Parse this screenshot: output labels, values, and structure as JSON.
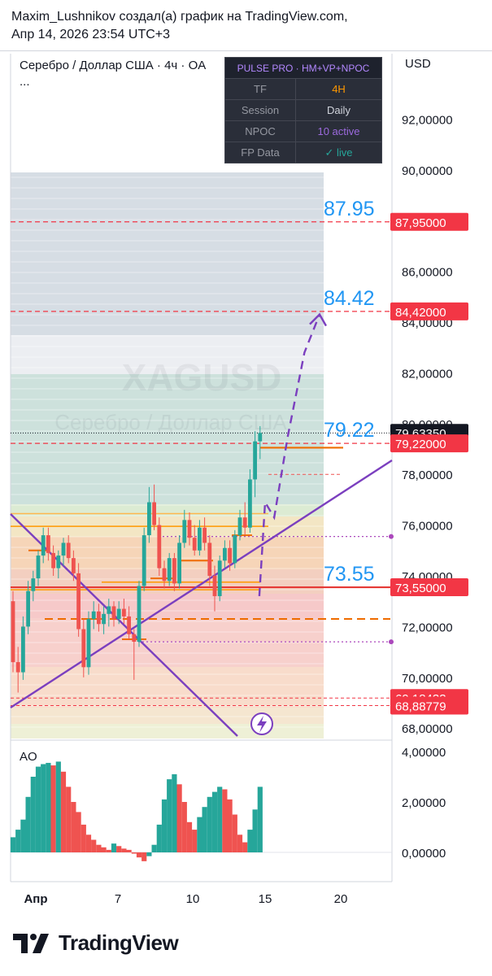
{
  "header": {
    "line1": "Maxim_Lushnikov создал(а) график на TradingView.com,",
    "line2": "Апр 14, 2026 23:54 UTC+3"
  },
  "symbol": {
    "title": "Серебро / Доллар США · 4ч · OA",
    "more": "...",
    "currency": "USD",
    "watermark_ticker": "XAGUSD",
    "watermark_name": "Серебро / Доллар США"
  },
  "indicator_table": {
    "header": "PULSE PRO · HM+VP+NPOC",
    "price_overlay": "79,63350",
    "rows": [
      {
        "key": "TF",
        "value": "4H",
        "color": "#ff9800"
      },
      {
        "key": "Session",
        "value": "Daily",
        "color": "#d1d4dc"
      },
      {
        "key": "NPOC",
        "value": "10 active",
        "color": "#9c6ade"
      },
      {
        "key": "FP Data",
        "value": "✓ live",
        "color": "#26a69a"
      }
    ]
  },
  "chart_data": {
    "type": "candlestick",
    "price_axis": {
      "ticks": [
        "92,00000",
        "90,00000",
        "88,00000",
        "86,00000",
        "84,00000",
        "82,00000",
        "80,00000",
        "78,00000",
        "76,00000",
        "74,00000",
        "72,00000",
        "70,00000",
        "68,00000"
      ],
      "ylim": [
        67.6,
        93.5
      ]
    },
    "time_axis": {
      "ticks": [
        "Апр",
        "7",
        "10",
        "15",
        "20"
      ]
    },
    "price_labels": [
      {
        "value": "87,95000",
        "price": 87.95,
        "bg": "#f23645"
      },
      {
        "value": "84,42000",
        "price": 84.42,
        "bg": "#f23645"
      },
      {
        "value": "79,63350",
        "price": 79.6335,
        "bg": "#131722"
      },
      {
        "value": "79,22000",
        "price": 79.22,
        "bg": "#f23645"
      },
      {
        "value": "73,55000",
        "price": 73.55,
        "bg": "#f23645"
      },
      {
        "value": "69,18433",
        "price": 69.18433,
        "bg": "#f23645"
      },
      {
        "value": "68,88779",
        "price": 68.88779,
        "bg": "#f23645"
      }
    ],
    "level_texts": [
      {
        "text": "87.95",
        "price": 87.95
      },
      {
        "text": "84.42",
        "price": 84.42
      },
      {
        "text": "79.22",
        "price": 79.22
      },
      {
        "text": "73.55",
        "price": 73.55
      }
    ],
    "candles": [
      [
        73.0,
        73.4,
        70.2,
        70.6
      ],
      [
        70.6,
        71.2,
        69.4,
        70.2
      ],
      [
        70.2,
        72.4,
        69.9,
        72.0
      ],
      [
        72.0,
        73.8,
        71.7,
        73.4
      ],
      [
        73.4,
        74.2,
        73.0,
        73.9
      ],
      [
        73.9,
        75.0,
        73.6,
        74.8
      ],
      [
        74.8,
        75.9,
        74.5,
        75.6
      ],
      [
        75.6,
        75.9,
        74.6,
        74.9
      ],
      [
        74.9,
        75.2,
        74.0,
        74.3
      ],
      [
        74.3,
        75.0,
        73.9,
        74.8
      ],
      [
        74.8,
        75.5,
        74.4,
        75.3
      ],
      [
        75.3,
        75.6,
        74.5,
        74.7
      ],
      [
        74.7,
        75.0,
        73.8,
        74.1
      ],
      [
        74.1,
        74.5,
        71.6,
        71.9
      ],
      [
        71.9,
        72.3,
        70.0,
        70.4
      ],
      [
        70.4,
        72.6,
        70.1,
        72.3
      ],
      [
        72.3,
        73.0,
        71.9,
        72.6
      ],
      [
        72.6,
        72.9,
        71.8,
        72.1
      ],
      [
        72.1,
        72.8,
        71.7,
        72.5
      ],
      [
        72.5,
        73.1,
        72.0,
        72.8
      ],
      [
        72.8,
        73.0,
        72.0,
        72.3
      ],
      [
        72.3,
        73.0,
        72.1,
        72.7
      ],
      [
        72.7,
        73.1,
        72.1,
        72.4
      ],
      [
        72.4,
        72.8,
        71.5,
        71.7
      ],
      [
        71.7,
        71.9,
        69.9,
        71.4
      ],
      [
        71.4,
        73.8,
        71.2,
        73.6
      ],
      [
        73.6,
        75.9,
        73.4,
        75.6
      ],
      [
        75.6,
        77.5,
        75.3,
        76.9
      ],
      [
        76.9,
        77.6,
        75.8,
        76.0
      ],
      [
        76.0,
        76.3,
        74.0,
        74.3
      ],
      [
        74.3,
        74.6,
        73.5,
        73.8
      ],
      [
        73.8,
        74.9,
        73.6,
        74.7
      ],
      [
        74.7,
        74.9,
        73.4,
        73.7
      ],
      [
        73.7,
        75.6,
        73.5,
        75.3
      ],
      [
        75.3,
        76.6,
        75.1,
        76.2
      ],
      [
        76.2,
        76.5,
        75.2,
        75.5
      ],
      [
        75.5,
        76.0,
        74.8,
        75.0
      ],
      [
        75.0,
        76.2,
        74.8,
        75.9
      ],
      [
        75.9,
        76.3,
        75.0,
        75.3
      ],
      [
        75.3,
        75.6,
        73.6,
        74.0
      ],
      [
        74.0,
        74.4,
        72.6,
        73.2
      ],
      [
        73.2,
        74.8,
        73.0,
        74.6
      ],
      [
        74.6,
        75.4,
        74.3,
        75.1
      ],
      [
        75.1,
        75.4,
        74.2,
        74.5
      ],
      [
        74.5,
        75.8,
        74.3,
        75.6
      ],
      [
        75.6,
        76.6,
        75.4,
        76.3
      ],
      [
        76.3,
        76.9,
        75.6,
        75.9
      ],
      [
        75.9,
        78.2,
        75.7,
        77.8
      ],
      [
        77.8,
        79.7,
        77.1,
        79.3
      ],
      [
        79.3,
        79.9,
        78.6,
        79.63
      ]
    ],
    "ao_axis": {
      "ticks": [
        "4,00000",
        "2,00000",
        "0,00000"
      ],
      "ylim": [
        -0.6,
        4.2
      ]
    },
    "ao_values": [
      0.6,
      0.9,
      1.3,
      2.2,
      3.0,
      3.4,
      3.5,
      3.55,
      3.45,
      3.6,
      3.2,
      2.6,
      2.0,
      1.6,
      1.1,
      0.7,
      0.5,
      0.3,
      0.2,
      0.1,
      0.35,
      0.25,
      0.15,
      0.1,
      -0.05,
      -0.2,
      -0.35,
      -0.15,
      0.3,
      1.1,
      2.1,
      2.9,
      3.1,
      2.7,
      2.0,
      1.2,
      0.9,
      1.4,
      1.8,
      2.2,
      2.4,
      2.6,
      2.5,
      2.1,
      1.5,
      0.7,
      0.4,
      0.9,
      1.7,
      2.6
    ],
    "projection": [
      [
        14.6,
        73.2
      ],
      [
        15.0,
        76.9
      ],
      [
        15.6,
        76.3
      ],
      [
        16.5,
        79.5
      ],
      [
        17.6,
        82.8
      ],
      [
        18.6,
        84.3
      ]
    ],
    "colors": {
      "up": "#26a69a",
      "down": "#ef5350",
      "accent": "#7b3fbf",
      "label_red": "#f23645",
      "level_blue": "#2196f3"
    }
  },
  "ao_panel": {
    "label": "AO"
  },
  "footer": {
    "brand": "TradingView"
  }
}
